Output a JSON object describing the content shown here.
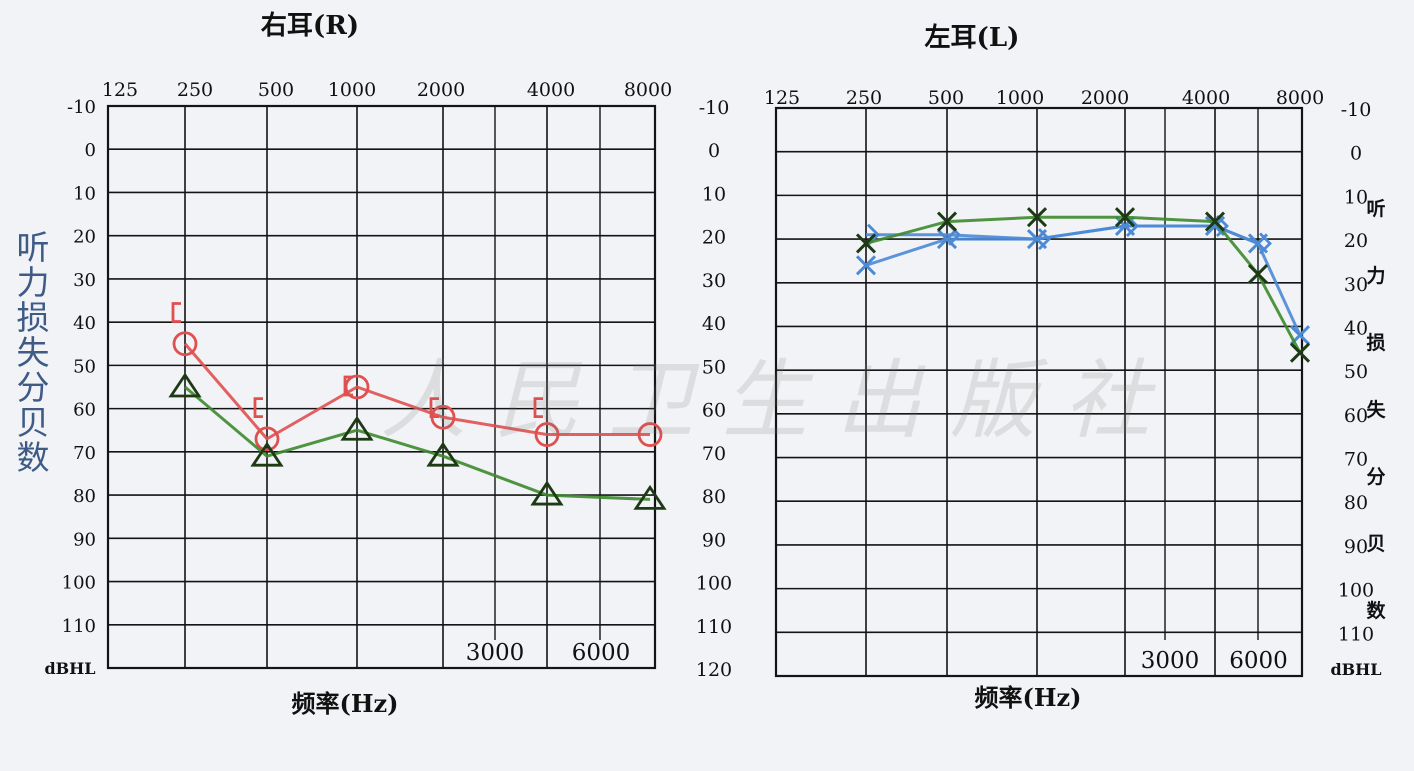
{
  "colors": {
    "background": "#f1f3f6",
    "grid": "#141414",
    "red_air": "#e0504f",
    "green_bone": "#3d8a2e",
    "green_marker": "#1e3a14",
    "blue_air": "#4c8ad6",
    "side_label": "#3e5b86"
  },
  "side_label": "听力损失分贝数",
  "watermark": "人民卫生出版社",
  "chart_data": [
    {
      "type": "line",
      "title": "右耳(R)",
      "xlabel": "频率(Hz)",
      "y_unit": "dBHL",
      "x_ticks_top": [
        "125",
        "250",
        "500",
        "1000",
        "2000",
        "4000",
        "8000"
      ],
      "x_ticks_bottom": [
        "3000",
        "6000"
      ],
      "y_ticks_left": [
        "-10",
        "0",
        "10",
        "20",
        "30",
        "40",
        "50",
        "60",
        "70",
        "80",
        "90",
        "100",
        "110"
      ],
      "y_ticks_right": [
        "-10",
        "0",
        "10",
        "20",
        "30",
        "40",
        "50",
        "60",
        "70",
        "80",
        "90",
        "100",
        "110",
        "120"
      ],
      "ylim": [
        -10,
        120
      ],
      "y_inverted": true,
      "series": [
        {
          "marker": "open-circle",
          "color": "#e0504f",
          "points": [
            [
              250,
              45
            ],
            [
              500,
              67
            ],
            [
              1000,
              55
            ],
            [
              2000,
              62
            ],
            [
              4000,
              66
            ],
            [
              8000,
              66
            ]
          ]
        },
        {
          "marker": "bracket",
          "color": "#e0504f",
          "points": [
            [
              250,
              38
            ],
            [
              500,
              60
            ],
            [
              1000,
              55
            ],
            [
              2000,
              60
            ],
            [
              4000,
              60
            ]
          ]
        },
        {
          "marker": "triangle",
          "color": "#3d8a2e",
          "points": [
            [
              250,
              55
            ],
            [
              500,
              71
            ],
            [
              1000,
              65
            ],
            [
              2000,
              71
            ],
            [
              4000,
              80
            ],
            [
              8000,
              81
            ]
          ]
        }
      ]
    },
    {
      "type": "line",
      "title": "左耳(L)",
      "xlabel": "频率(Hz)",
      "y_unit": "dBHL",
      "x_ticks_top": [
        "125",
        "250",
        "500",
        "1000",
        "2000",
        "4000",
        "8000"
      ],
      "x_ticks_bottom": [
        "3000",
        "6000"
      ],
      "y_ticks_right": [
        "-10",
        "0",
        "10",
        "20",
        "30",
        "40",
        "50",
        "60",
        "70",
        "80",
        "90",
        "100",
        "110"
      ],
      "right_label_chars": [
        "听",
        "力",
        "损",
        "失",
        "分",
        "贝",
        "数"
      ],
      "ylim": [
        -10,
        120
      ],
      "y_inverted": true,
      "series": [
        {
          "marker": "cross",
          "color": "#4c8ad6",
          "points": [
            [
              250,
              26
            ],
            [
              500,
              20
            ],
            [
              1000,
              20
            ],
            [
              2000,
              17
            ],
            [
              4000,
              17
            ],
            [
              6000,
              21
            ],
            [
              8000,
              42
            ]
          ]
        },
        {
          "marker": "angle",
          "color": "#4c8ad6",
          "points": [
            [
              250,
              19
            ],
            [
              500,
              19
            ],
            [
              1000,
              20
            ],
            [
              2000,
              17
            ],
            [
              4000,
              17
            ],
            [
              6000,
              21
            ]
          ]
        },
        {
          "marker": "cross",
          "color": "#3d8a2e",
          "points": [
            [
              250,
              21
            ],
            [
              500,
              16
            ],
            [
              1000,
              15
            ],
            [
              2000,
              15
            ],
            [
              4000,
              16
            ],
            [
              6000,
              28
            ],
            [
              8000,
              46
            ]
          ]
        }
      ]
    }
  ]
}
